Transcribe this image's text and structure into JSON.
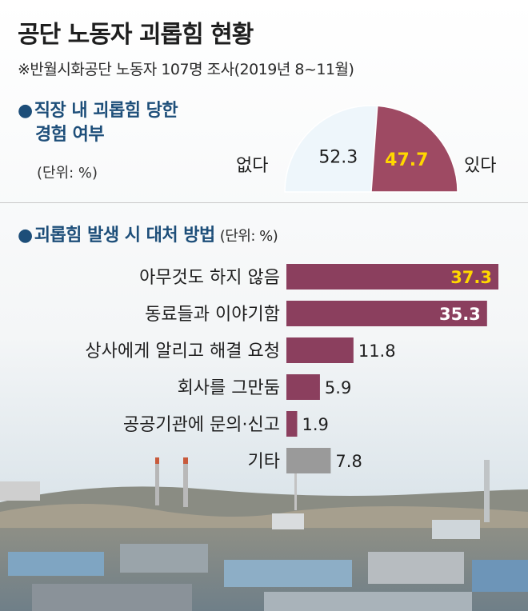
{
  "title": "공단 노동자 괴롭힘 현황",
  "subtitle": "※반월시화공단 노동자 107명 조사(2019년 8~11월)",
  "colors": {
    "bar": "#8b3f5e",
    "bar_other": "#9a9a9a",
    "pie_yes": "#9e4a63",
    "pie_no": "#eef6fb",
    "highlight_label": "#ffd700",
    "heading": "#1d4e79"
  },
  "section1": {
    "bullet": "●",
    "title_line1": "직장 내 괴롭힘 당한",
    "title_line2": "경험 여부",
    "unit": "(단위: %)",
    "no_label": "없다",
    "yes_label": "있다"
  },
  "section2": {
    "bullet": "●",
    "title": "괴롭힘 발생 시 대처 방법",
    "unit": "(단위: %)"
  },
  "chart_data": [
    {
      "type": "pie",
      "title": "직장 내 괴롭힘 당한 경험 여부",
      "unit": "%",
      "categories": [
        "없다",
        "있다"
      ],
      "values": [
        52.3,
        47.7
      ],
      "shape": "semicircle"
    },
    {
      "type": "bar",
      "orientation": "horizontal",
      "title": "괴롭힘 발생 시 대처 방법",
      "unit": "%",
      "categories": [
        "아무것도 하지 않음",
        "동료들과 이야기함",
        "상사에게 알리고 해결 요청",
        "회사를 그만둠",
        "공공기관에 문의·신고",
        "기타"
      ],
      "values": [
        37.3,
        35.3,
        11.8,
        5.9,
        1.9,
        7.8
      ],
      "value_labels": [
        "37.3",
        "35.3",
        "11.8",
        "5.9",
        "1.9",
        "7.8"
      ],
      "xlim": [
        0,
        38
      ]
    }
  ]
}
